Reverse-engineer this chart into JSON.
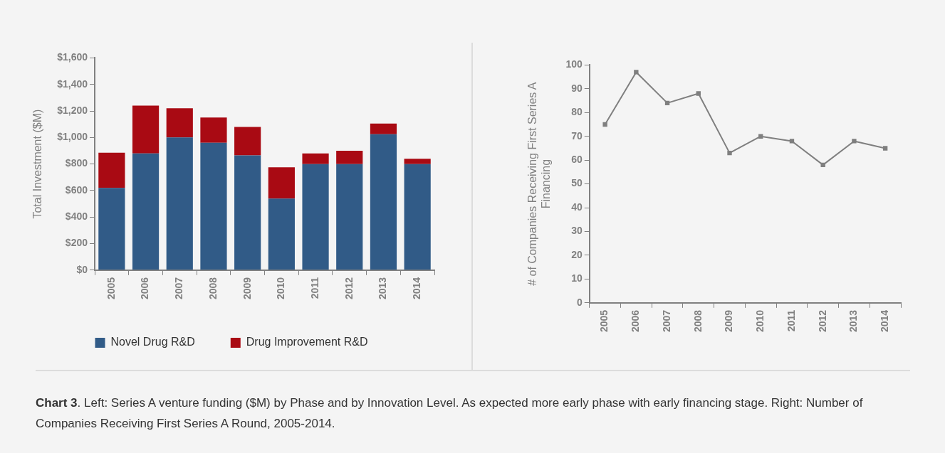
{
  "chart_data": [
    {
      "type": "bar",
      "stacked": true,
      "categories": [
        "2005",
        "2006",
        "2007",
        "2008",
        "2009",
        "2010",
        "2011",
        "2012",
        "2013",
        "2014"
      ],
      "series": [
        {
          "name": "Novel Drug R&D",
          "color": "#315b87",
          "values": [
            620,
            880,
            1000,
            960,
            865,
            540,
            800,
            800,
            1025,
            800
          ]
        },
        {
          "name": "Drug Improvement R&D",
          "color": "#a90a13",
          "values": [
            265,
            360,
            220,
            190,
            215,
            235,
            80,
            100,
            80,
            40
          ]
        }
      ],
      "ylabel": "Total Investment ($M)",
      "ylim": [
        0,
        1600
      ],
      "yticks": [
        {
          "value": 0,
          "label": "$0"
        },
        {
          "value": 200,
          "label": "$200"
        },
        {
          "value": 400,
          "label": "$400"
        },
        {
          "value": 600,
          "label": "$600"
        },
        {
          "value": 800,
          "label": "$800"
        },
        {
          "value": 1000,
          "label": "$1,000"
        },
        {
          "value": 1200,
          "label": "$1,200"
        },
        {
          "value": 1400,
          "label": "$1,400"
        },
        {
          "value": 1600,
          "label": "$1,600"
        }
      ],
      "grid": false,
      "legend": "bottom",
      "annotations": [
        "Chart 3",
        ". Left: Series A venture funding ($M) by Phase and by Innovation Level. As expected more early phase with early financing stage. Right: Number of Companies Receiving First Series A Round, 2005-2014."
      ]
    },
    {
      "type": "line",
      "categories": [
        "2005",
        "2006",
        "2007",
        "2008",
        "2009",
        "2010",
        "2011",
        "2012",
        "2013",
        "2014"
      ],
      "series": [
        {
          "color": "#7f7f7f",
          "values": [
            75,
            97,
            84,
            88,
            63,
            70,
            68,
            58,
            68,
            65
          ]
        }
      ],
      "ylabel": "# of Companies Receiving First Series A Financing",
      "ylim": [
        0,
        100
      ],
      "yticks": [
        0,
        10,
        20,
        30,
        40,
        50,
        60,
        70,
        80,
        90,
        100
      ],
      "grid": false,
      "legend": false,
      "marker": "square",
      "line_style": "solid"
    }
  ]
}
